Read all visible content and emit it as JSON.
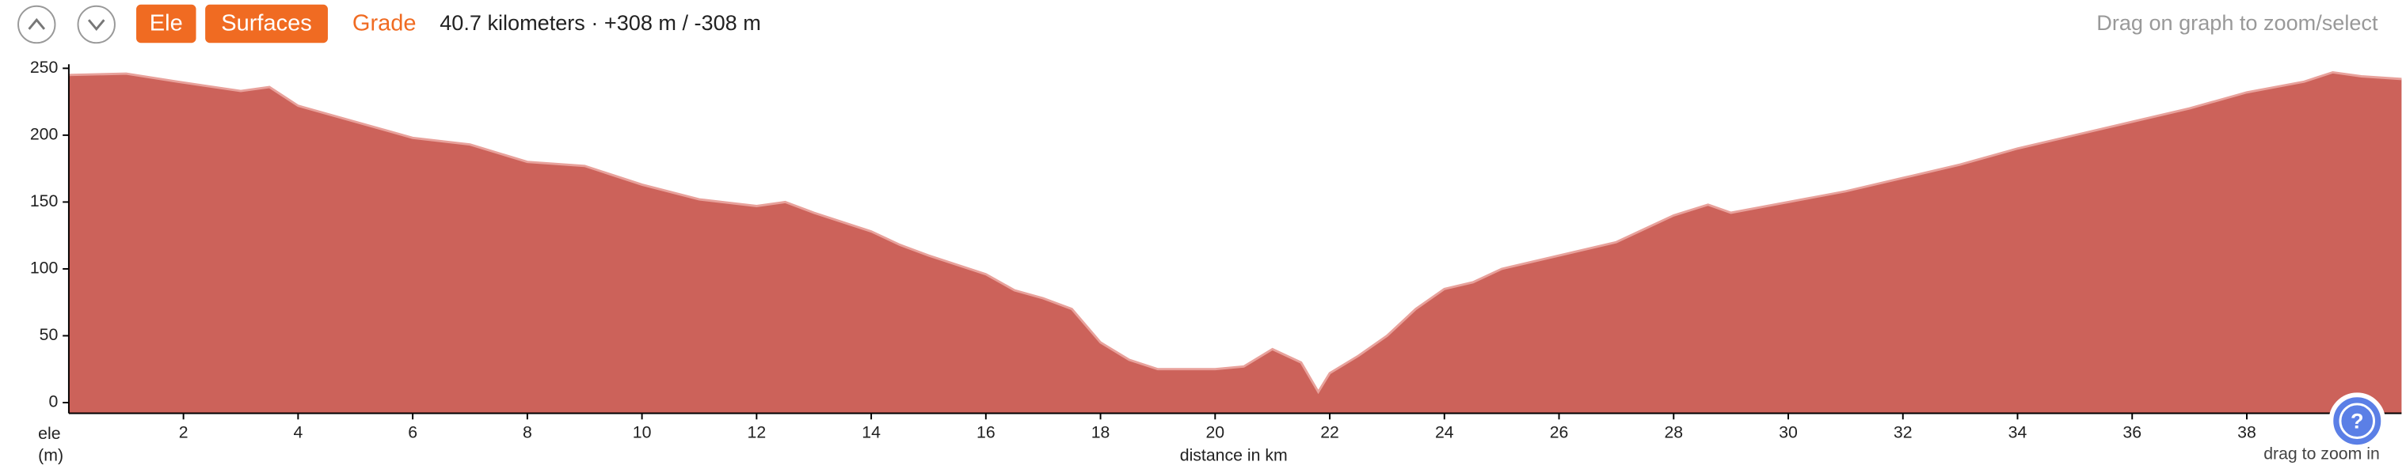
{
  "toolbar": {
    "ele_button": "Ele",
    "surfaces_button": "Surfaces",
    "grade_button": "Grade",
    "summary": "40.7 kilometers · +308 m / -308 m",
    "hint": "Drag on graph to zoom/select"
  },
  "help_icon": "?",
  "zoom_hint": "drag to zoom in",
  "chart_data": {
    "type": "area",
    "xlabel": "distance in km",
    "ylabel": [
      "ele",
      "(m)"
    ],
    "x": [
      0,
      1,
      1.9,
      3,
      3.5,
      4,
      5,
      6,
      7,
      8,
      9,
      10,
      11,
      12,
      12.5,
      13,
      14,
      14.5,
      15,
      16,
      16.5,
      17,
      17.5,
      18,
      18.5,
      19,
      20,
      20.5,
      21,
      21.5,
      21.8,
      22,
      22.5,
      23,
      23.5,
      24,
      24.5,
      25,
      26,
      27,
      27.5,
      28,
      28.6,
      29,
      30,
      31,
      32,
      33,
      34,
      35,
      36,
      37,
      38,
      39,
      39.5,
      40,
      40.7
    ],
    "values": [
      245,
      246,
      240,
      233,
      236,
      222,
      210,
      198,
      193,
      180,
      177,
      163,
      152,
      147,
      150,
      142,
      128,
      118,
      110,
      96,
      84,
      78,
      70,
      45,
      32,
      25,
      25,
      27,
      40,
      30,
      8,
      22,
      35,
      50,
      70,
      85,
      90,
      100,
      110,
      120,
      130,
      140,
      148,
      142,
      150,
      158,
      168,
      178,
      190,
      200,
      210,
      220,
      232,
      240,
      247,
      244,
      242
    ],
    "color": "#cc625a",
    "xlim": [
      0,
      40.7
    ],
    "ylim": [
      -8,
      253
    ],
    "xticks": [
      2,
      4,
      6,
      8,
      10,
      12,
      14,
      16,
      18,
      20,
      22,
      24,
      26,
      28,
      30,
      32,
      34,
      36,
      38
    ],
    "yticks": [
      0,
      50,
      100,
      150,
      200,
      250
    ]
  }
}
